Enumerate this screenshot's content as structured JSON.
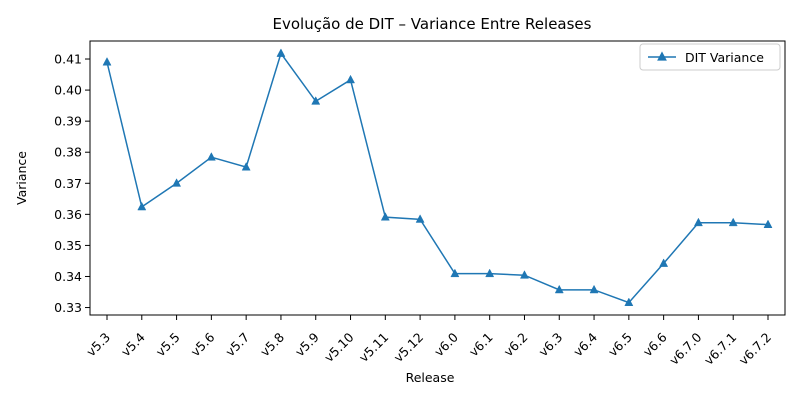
{
  "chart_data": {
    "type": "line",
    "title": "Evolução de DIT – Variance Entre Releases",
    "xlabel": "Release",
    "ylabel": "Variance",
    "categories": [
      "v5.3",
      "v5.4",
      "v5.5",
      "v5.6",
      "v5.7",
      "v5.8",
      "v5.9",
      "v5.10",
      "v5.11",
      "v5.12",
      "v6.0",
      "v6.1",
      "v6.2",
      "v6.3",
      "v6.4",
      "v6.5",
      "v6.6",
      "v6.7.0",
      "v6.7.1",
      "v6.7.2"
    ],
    "series": [
      {
        "name": "DIT Variance",
        "color": "#1f77b4",
        "marker": "triangle-up",
        "values": [
          0.409,
          0.3624,
          0.37,
          0.3784,
          0.3752,
          0.4118,
          0.3964,
          0.4033,
          0.3591,
          0.3584,
          0.3409,
          0.3409,
          0.3404,
          0.3357,
          0.3357,
          0.3316,
          0.3442,
          0.3573,
          0.3573,
          0.3567
        ]
      }
    ],
    "ylim": [
      0.3276,
      0.4158
    ],
    "yticks": [
      0.33,
      0.34,
      0.35,
      0.36,
      0.37,
      0.38,
      0.39,
      0.4,
      0.41
    ],
    "ytick_labels": [
      "0.33",
      "0.34",
      "0.35",
      "0.36",
      "0.37",
      "0.38",
      "0.39",
      "0.40",
      "0.41"
    ],
    "grid": false,
    "legend_position": "top-right"
  }
}
